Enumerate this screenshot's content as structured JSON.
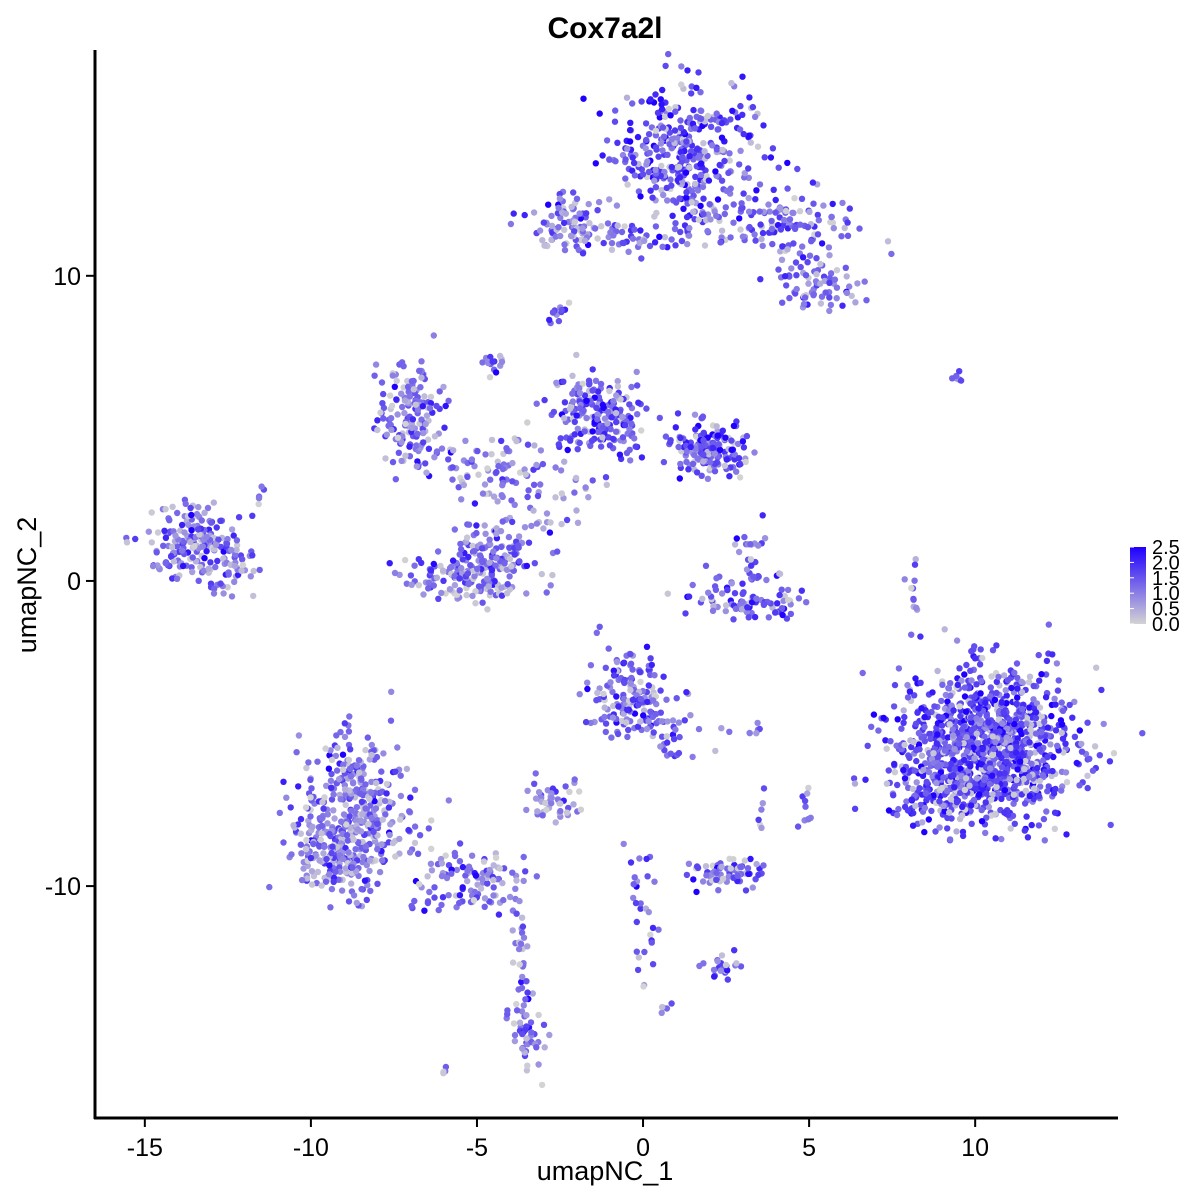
{
  "chart_data": {
    "type": "scatter",
    "title": "Cox7a2l",
    "xlabel": "umapNC_1",
    "ylabel": "umapNC_2",
    "xlim": [
      -16.5,
      14.3
    ],
    "ylim": [
      -17.6,
      17.4
    ],
    "xticks": [
      -15,
      -10,
      -5,
      0,
      5,
      10
    ],
    "yticks": [
      -10,
      0,
      10
    ],
    "xtick_labels": [
      "-15",
      "-10",
      "-5",
      "0",
      "5",
      "10"
    ],
    "ytick_labels": [
      "-10",
      "0",
      "10"
    ],
    "grid": false,
    "legend": {
      "placement": "right",
      "labels": [
        "2.5",
        "2.0",
        "1.5",
        "1.0",
        "0.5",
        "0.0"
      ],
      "values": [
        2.5,
        2.0,
        1.5,
        1.0,
        0.5,
        0.0
      ]
    },
    "color_scale": {
      "low": "#d3d3d3",
      "high": "#1f00ff",
      "min": 0,
      "max": 2.5
    },
    "clusters": [
      {
        "cx": 1.2,
        "cy": 14.0,
        "sx": 1.1,
        "sy": 1.1,
        "n": 380,
        "mean": 1.6
      },
      {
        "cx": 3.8,
        "cy": 11.8,
        "sx": 1.3,
        "sy": 0.5,
        "n": 140,
        "mean": 1.3
      },
      {
        "cx": 5.2,
        "cy": 9.8,
        "sx": 0.7,
        "sy": 0.6,
        "n": 80,
        "mean": 1.3
      },
      {
        "cx": -2.3,
        "cy": 11.7,
        "sx": 0.6,
        "sy": 0.4,
        "n": 90,
        "mean": 1.1
      },
      {
        "cx": -0.2,
        "cy": 11.2,
        "sx": 0.9,
        "sy": 0.25,
        "n": 45,
        "mean": 1.2
      },
      {
        "cx": -7.0,
        "cy": 5.4,
        "sx": 0.5,
        "sy": 0.8,
        "n": 150,
        "mean": 1.3
      },
      {
        "cx": -1.3,
        "cy": 5.5,
        "sx": 0.7,
        "sy": 0.6,
        "n": 200,
        "mean": 1.5
      },
      {
        "cx": 2.0,
        "cy": 4.3,
        "sx": 0.6,
        "sy": 0.4,
        "n": 160,
        "mean": 1.5
      },
      {
        "cx": -4.8,
        "cy": 3.8,
        "sx": 1.0,
        "sy": 0.5,
        "n": 70,
        "mean": 1.1
      },
      {
        "cx": -3.3,
        "cy": 2.8,
        "sx": 1.3,
        "sy": 1.0,
        "n": 60,
        "mean": 0.9
      },
      {
        "cx": -5.2,
        "cy": 0.2,
        "sx": 1.0,
        "sy": 0.5,
        "n": 180,
        "mean": 1.2
      },
      {
        "cx": -4.6,
        "cy": 1.3,
        "sx": 0.6,
        "sy": 0.7,
        "n": 60,
        "mean": 1.2
      },
      {
        "cx": -13.5,
        "cy": 1.3,
        "sx": 0.7,
        "sy": 0.6,
        "n": 180,
        "mean": 1.3
      },
      {
        "cx": -12.4,
        "cy": 0.3,
        "sx": 0.5,
        "sy": 0.4,
        "n": 40,
        "mean": 1.1
      },
      {
        "cx": 3.1,
        "cy": -0.6,
        "sx": 0.9,
        "sy": 0.35,
        "n": 90,
        "mean": 1.4
      },
      {
        "cx": 3.3,
        "cy": 0.9,
        "sx": 0.3,
        "sy": 0.5,
        "n": 25,
        "mean": 1.3
      },
      {
        "cx": 10.4,
        "cy": -5.4,
        "sx": 1.3,
        "sy": 1.2,
        "n": 1100,
        "mean": 1.6
      },
      {
        "cx": 9.0,
        "cy": -6.6,
        "sx": 0.9,
        "sy": 0.7,
        "n": 180,
        "mean": 1.6
      },
      {
        "cx": -0.5,
        "cy": -3.7,
        "sx": 0.6,
        "sy": 0.7,
        "n": 150,
        "mean": 1.4
      },
      {
        "cx": 0.8,
        "cy": -4.9,
        "sx": 0.5,
        "sy": 0.5,
        "n": 40,
        "mean": 1.3
      },
      {
        "cx": -8.7,
        "cy": -7.6,
        "sx": 0.8,
        "sy": 1.2,
        "n": 380,
        "mean": 1.2
      },
      {
        "cx": -9.4,
        "cy": -9.0,
        "sx": 0.6,
        "sy": 0.6,
        "n": 120,
        "mean": 1.1
      },
      {
        "cx": -5.2,
        "cy": -9.8,
        "sx": 1.0,
        "sy": 0.5,
        "n": 110,
        "mean": 1.2
      },
      {
        "cx": -3.5,
        "cy": -14.7,
        "sx": 0.3,
        "sy": 0.8,
        "n": 50,
        "mean": 1.2
      },
      {
        "cx": -3.7,
        "cy": -12.4,
        "sx": 0.15,
        "sy": 0.9,
        "n": 25,
        "mean": 1.1
      },
      {
        "cx": -2.6,
        "cy": -7.2,
        "sx": 0.4,
        "sy": 0.3,
        "n": 45,
        "mean": 0.9
      },
      {
        "cx": 2.5,
        "cy": -9.6,
        "sx": 0.6,
        "sy": 0.25,
        "n": 70,
        "mean": 1.2
      },
      {
        "cx": 0.0,
        "cy": -11.0,
        "sx": 0.2,
        "sy": 1.2,
        "n": 30,
        "mean": 1.3
      },
      {
        "cx": 2.3,
        "cy": -12.6,
        "sx": 0.3,
        "sy": 0.2,
        "n": 25,
        "mean": 1.5
      },
      {
        "cx": -2.6,
        "cy": 8.8,
        "sx": 0.15,
        "sy": 0.15,
        "n": 12,
        "mean": 1.3
      },
      {
        "cx": -4.5,
        "cy": 7.2,
        "sx": 0.2,
        "sy": 0.3,
        "n": 15,
        "mean": 1.2
      },
      {
        "cx": 5.0,
        "cy": -7.5,
        "sx": 0.15,
        "sy": 0.3,
        "n": 10,
        "mean": 1.2
      },
      {
        "cx": 3.1,
        "cy": -4.9,
        "sx": 0.3,
        "sy": 0.1,
        "n": 8,
        "mean": 1.0
      },
      {
        "cx": 8.0,
        "cy": -0.3,
        "sx": 0.2,
        "sy": 0.8,
        "n": 12,
        "mean": 1.0
      },
      {
        "cx": 9.5,
        "cy": 6.7,
        "sx": 0.1,
        "sy": 0.1,
        "n": 6,
        "mean": 1.4
      },
      {
        "cx": 0.6,
        "cy": -14.0,
        "sx": 0.1,
        "sy": 0.1,
        "n": 5,
        "mean": 1.3
      },
      {
        "cx": -6.0,
        "cy": -16.0,
        "sx": 0.1,
        "sy": 0.1,
        "n": 4,
        "mean": 1.2
      },
      {
        "cx": -11.5,
        "cy": 2.7,
        "sx": 0.15,
        "sy": 0.15,
        "n": 5,
        "mean": 1.2
      },
      {
        "cx": 3.6,
        "cy": -7.5,
        "sx": 0.1,
        "sy": 0.4,
        "n": 6,
        "mean": 1.0
      }
    ]
  }
}
